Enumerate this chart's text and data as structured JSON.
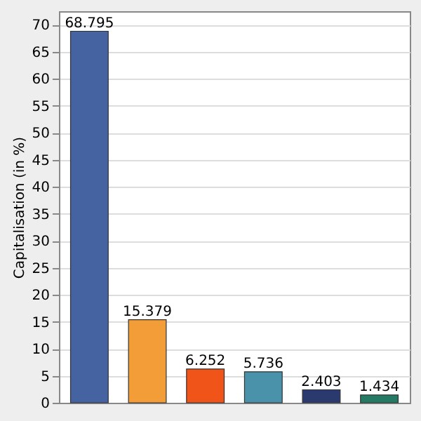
{
  "chart_data": {
    "type": "bar",
    "ylabel": "Capitalisation (in %)",
    "categories": [
      null,
      null,
      null,
      null,
      null,
      null
    ],
    "values": [
      68.795,
      15.379,
      6.252,
      5.736,
      2.403,
      1.434
    ],
    "colors": [
      "#4563a0",
      "#f29d38",
      "#f05418",
      "#4a92aa",
      "#2a3a6e",
      "#247a62"
    ],
    "ylim": [
      0,
      72.5
    ],
    "yticks": [
      0,
      5,
      10,
      15,
      20,
      25,
      30,
      35,
      40,
      45,
      50,
      55,
      60,
      65,
      70
    ],
    "grid": "y",
    "data_labels": true
  }
}
